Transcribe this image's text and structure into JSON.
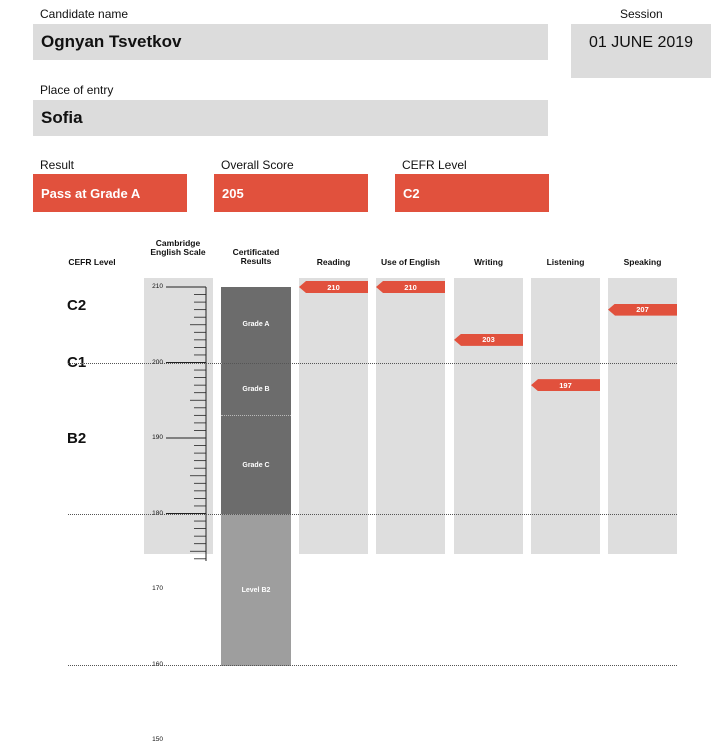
{
  "candidate": {
    "label": "Candidate name",
    "value": "Ognyan Tsvetkov"
  },
  "session": {
    "label": "Session",
    "value": "01 JUNE 2019"
  },
  "place": {
    "label": "Place of entry",
    "value": "Sofia"
  },
  "result": {
    "label": "Result",
    "value": "Pass at Grade A"
  },
  "overall": {
    "label": "Overall Score",
    "value": "205"
  },
  "cefr": {
    "label": "CEFR Level",
    "value": "C2"
  },
  "colors": {
    "accent": "#e1513d",
    "panel": "#dcdcdc",
    "grade_dark": "#6c6c6c",
    "grade_light": "#9e9e9e"
  },
  "chart": {
    "headers": {
      "cefr": "CEFR Level",
      "scale": "Cambridge English Scale",
      "certificated": "Certificated Results",
      "skills": [
        "Reading",
        "Use of English",
        "Writing",
        "Listening",
        "Speaking"
      ]
    },
    "cefr_levels": [
      "C2",
      "C1",
      "B2"
    ],
    "scale_labels": [
      "210",
      "200",
      "190",
      "180",
      "170",
      "160",
      "150"
    ],
    "grades": [
      "Grade A",
      "Grade B",
      "Grade C",
      "Level B2"
    ]
  },
  "chart_data": {
    "type": "bar",
    "categories": [
      "Reading",
      "Use of English",
      "Writing",
      "Listening",
      "Speaking"
    ],
    "values": [
      210,
      210,
      203,
      197,
      207
    ],
    "ylim": [
      145,
      212
    ],
    "y_ticks": [
      150,
      160,
      170,
      180,
      190,
      200,
      210
    ],
    "cefr_bands": [
      {
        "level": "C2",
        "from": 200,
        "to": 210
      },
      {
        "level": "C1",
        "from": 180,
        "to": 200
      },
      {
        "level": "B2",
        "from": 160,
        "to": 180
      }
    ],
    "certificated_results": [
      {
        "name": "Grade A",
        "from": 200,
        "to": 210
      },
      {
        "name": "Grade B",
        "from": 193,
        "to": 200
      },
      {
        "name": "Grade C",
        "from": 180,
        "to": 193
      },
      {
        "name": "Level B2",
        "from": 160,
        "to": 180
      }
    ]
  }
}
